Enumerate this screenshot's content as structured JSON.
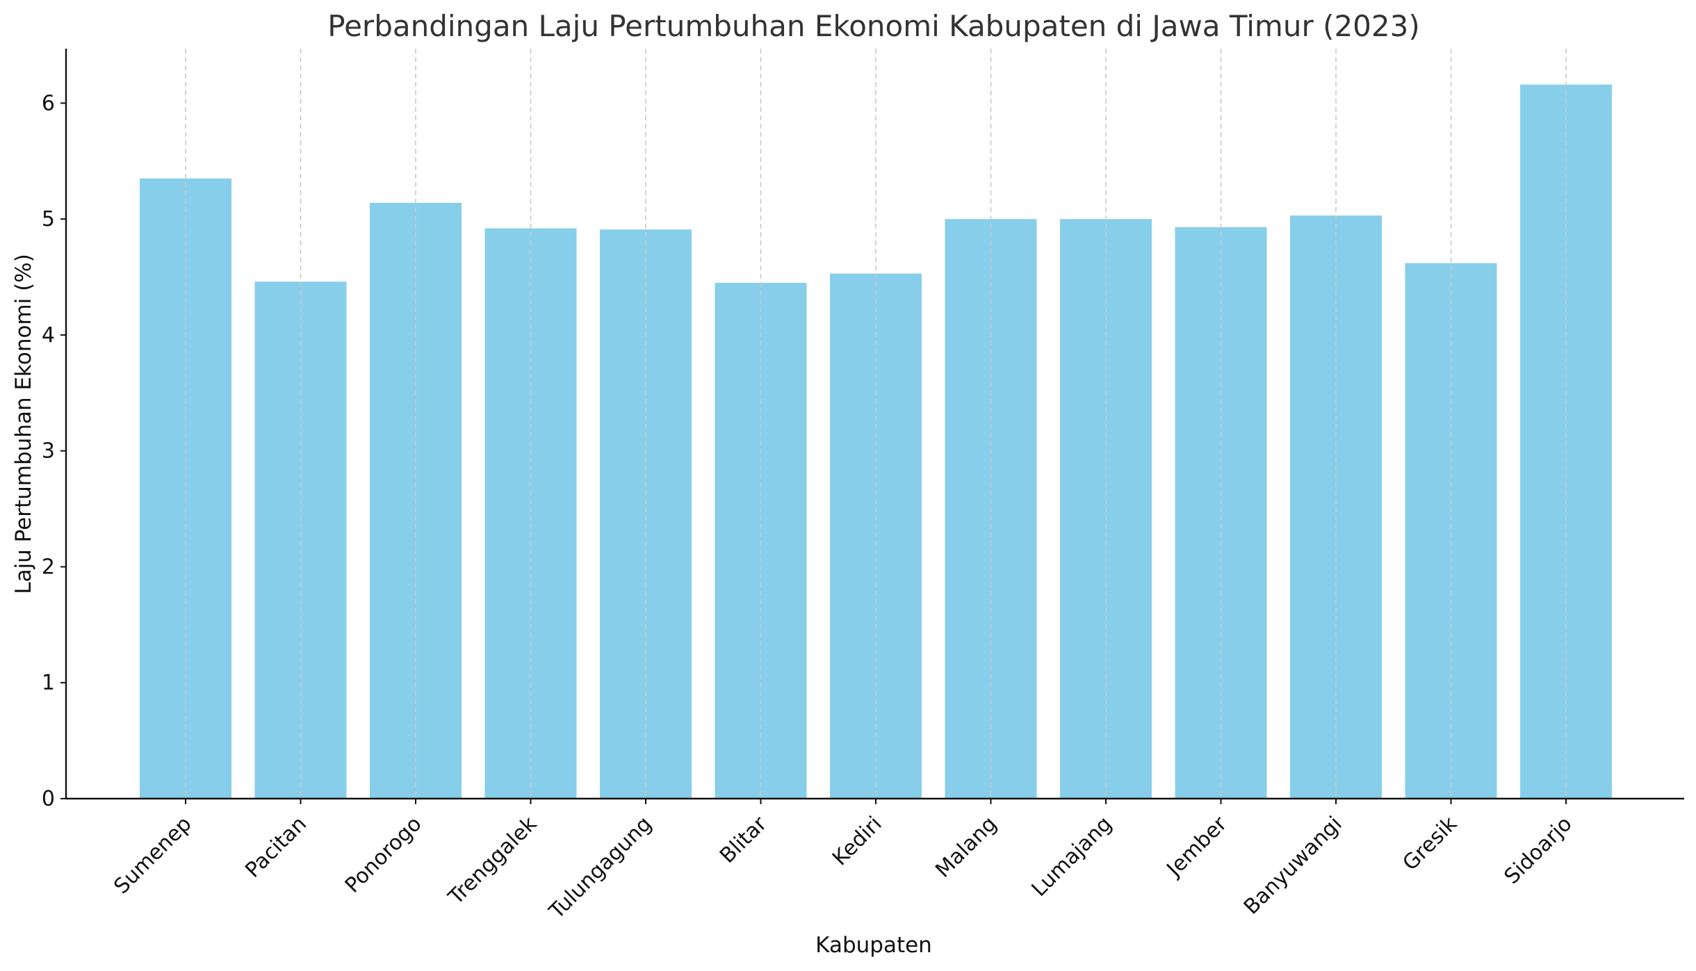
{
  "chart_data": {
    "type": "bar",
    "title": "Perbandingan Laju Pertumbuhan Ekonomi Kabupaten di Jawa Timur (2023)",
    "xlabel": "Kabupaten",
    "ylabel": "Laju Pertumbuhan Ekonomi (%)",
    "categories": [
      "Sumenep",
      "Pacitan",
      "Ponorogo",
      "Trenggalek",
      "Tulungagung",
      "Blitar",
      "Kediri",
      "Malang",
      "Lumajang",
      "Jember",
      "Banyuwangi",
      "Gresik",
      "Sidoarjo"
    ],
    "values": [
      5.35,
      4.46,
      5.14,
      4.92,
      4.91,
      4.45,
      4.53,
      5.0,
      5.0,
      4.93,
      5.03,
      4.62,
      6.16
    ],
    "ylim": [
      0,
      6.47
    ],
    "yticks": [
      0,
      1,
      2,
      3,
      4,
      5,
      6
    ],
    "grid": "x-axis dashed",
    "legend": "none",
    "colors": {
      "bar": "#87ceeb",
      "grid": "#c8c8c8",
      "axis": "#111111",
      "title": "#333333"
    }
  }
}
